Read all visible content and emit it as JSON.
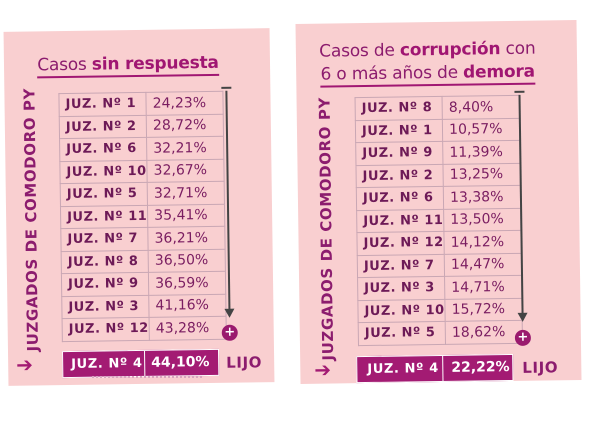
{
  "left": {
    "title_prefix": "Casos ",
    "title_bold": "sin respuesta",
    "vertical_label": "JUZGADOS DE COMODORO PY",
    "rows": [
      {
        "court": "JUZ. Nº 1",
        "value": "24,23%"
      },
      {
        "court": "JUZ. Nº 2",
        "value": "28,72%"
      },
      {
        "court": "JUZ. Nº 6",
        "value": "32,21%"
      },
      {
        "court": "JUZ. Nº 10",
        "value": "32,67%"
      },
      {
        "court": "JUZ. Nº 5",
        "value": "32,71%"
      },
      {
        "court": "JUZ. Nº 11",
        "value": "35,41%"
      },
      {
        "court": "JUZ. Nº 7",
        "value": "36,21%"
      },
      {
        "court": "JUZ. Nº 8",
        "value": "36,50%"
      },
      {
        "court": "JUZ. Nº 9",
        "value": "36,59%"
      },
      {
        "court": "JUZ. Nº 3",
        "value": "41,16%"
      },
      {
        "court": "JUZ. Nº 12",
        "value": "43,28%"
      }
    ],
    "highlight": {
      "court": "JUZ. Nº 4",
      "value": "44,10%",
      "name": "LIJO"
    },
    "minus": "–",
    "plus": "+"
  },
  "right": {
    "title_line1_prefix": "Casos de ",
    "title_line1_bold": "corrupción",
    "title_line1_suffix": " con",
    "title_line2_prefix": "6 o más años de ",
    "title_line2_bold": "demora",
    "vertical_label": "JUZGADOS DE COMODORO PY",
    "rows": [
      {
        "court": "JUZ. Nº 8",
        "value": "8,40%"
      },
      {
        "court": "JUZ. Nº 1",
        "value": "10,57%"
      },
      {
        "court": "JUZ. Nº 9",
        "value": "11,39%"
      },
      {
        "court": "JUZ. Nº 2",
        "value": "13,25%"
      },
      {
        "court": "JUZ. Nº 6",
        "value": "13,38%"
      },
      {
        "court": "JUZ. Nº 11",
        "value": "13,50%"
      },
      {
        "court": "JUZ. Nº 12",
        "value": "14,12%"
      },
      {
        "court": "JUZ. Nº 7",
        "value": "14,47%"
      },
      {
        "court": "JUZ. Nº 3",
        "value": "14,71%"
      },
      {
        "court": "JUZ. Nº 10",
        "value": "15,72%"
      },
      {
        "court": "JUZ. Nº 5",
        "value": "18,62%"
      }
    ],
    "highlight": {
      "court": "JUZ. Nº 4",
      "value": "22,22%",
      "name": "LIJO"
    },
    "minus": "–",
    "plus": "+"
  },
  "colors": {
    "panel": "#f9cfd0",
    "accent": "#a31b73",
    "text": "#8c1c6e"
  },
  "icons": {
    "highlight_arrow": "right-arrow-icon",
    "order_arrow": "down-arrow-icon"
  }
}
